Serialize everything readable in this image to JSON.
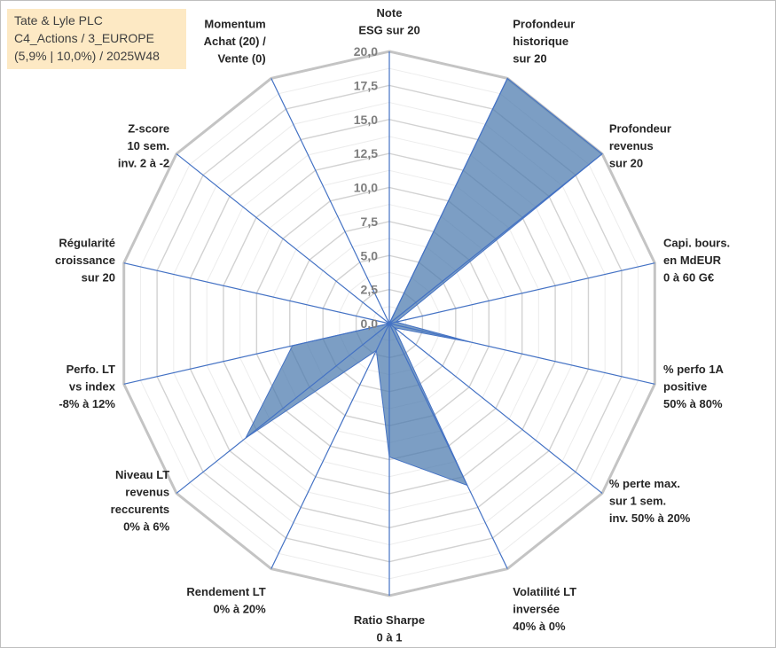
{
  "header": {
    "lines": [
      "Tate & Lyle PLC",
      "C4_Actions / 3_EUROPE",
      "(5,9% | 10,0%) / 2025W48"
    ]
  },
  "chart_data": {
    "type": "radar",
    "rlim": [
      0,
      20
    ],
    "ticks": [
      "0,0",
      "2,5",
      "5,0",
      "7,5",
      "10,0",
      "12,5",
      "15,0",
      "17,5",
      "20,0"
    ],
    "tick_values": [
      0,
      2.5,
      5,
      7.5,
      10,
      12.5,
      15,
      17.5,
      20
    ],
    "grid": true,
    "fill_color": "#4a78ad",
    "line_color": "#4472c4",
    "grid_color": "#c8c8c8",
    "categories": [
      [
        "Note",
        "ESG sur 20"
      ],
      [
        "Profondeur",
        "historique",
        "sur 20"
      ],
      [
        "Profondeur",
        "revenus",
        "sur 20"
      ],
      [
        "Capi. bours.",
        "en MdEUR",
        "0 à 60 G€"
      ],
      [
        "% perfo 1A",
        "positive",
        "50% à 80%"
      ],
      [
        "% perte max.",
        "sur 1 sem.",
        "inv. 50% à 20%"
      ],
      [
        "Volatilité LT",
        "inversée",
        "40% à 0%"
      ],
      [
        "Ratio Sharpe",
        "0 à 1"
      ],
      [
        "Rendement LT",
        "0% à 20%"
      ],
      [
        "Niveau LT",
        "revenus",
        "reccurents",
        "0% à 6%"
      ],
      [
        "Perfo. LT",
        "vs index",
        "-8% à 12%"
      ],
      [
        "Régularité",
        "croissance",
        "sur 20"
      ],
      [
        "Z-score",
        "10 sem.",
        "inv. 2 à -2"
      ],
      [
        "Momentum",
        "Achat (20) /",
        "Vente (0)"
      ]
    ],
    "values": [
      0,
      20,
      20,
      0.5,
      6.2,
      0.5,
      13.2,
      9.8,
      2.2,
      13.5,
      7.3,
      0,
      0,
      0
    ]
  }
}
